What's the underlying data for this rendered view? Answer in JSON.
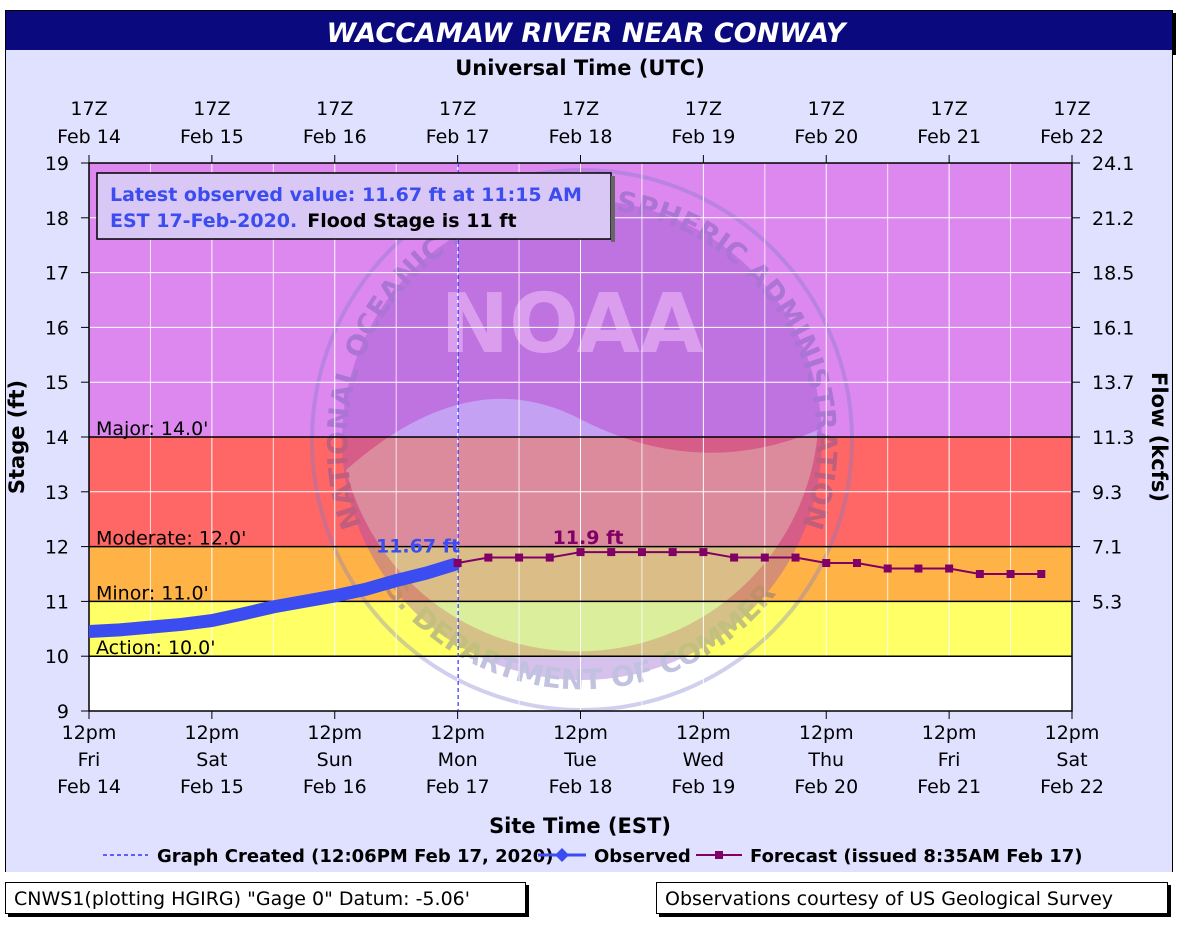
{
  "chart_data": {
    "type": "line",
    "title": "WACCAMAW RIVER NEAR CONWAY",
    "top_axis_title": "Universal Time (UTC)",
    "bottom_axis_title": "Site Time (EST)",
    "ylabel": "Stage (ft)",
    "y2label": "Flow (kcfs)",
    "ylim": [
      9,
      19
    ],
    "y_ticks": [
      9,
      10,
      11,
      12,
      13,
      14,
      15,
      16,
      17,
      18,
      19
    ],
    "y2_ticks": [
      {
        "stage": 11,
        "label": "5.3"
      },
      {
        "stage": 12,
        "label": "7.1"
      },
      {
        "stage": 13,
        "label": "9.3"
      },
      {
        "stage": 14,
        "label": "11.3"
      },
      {
        "stage": 15,
        "label": "13.7"
      },
      {
        "stage": 16,
        "label": "16.1"
      },
      {
        "stage": 17,
        "label": "18.5"
      },
      {
        "stage": 18,
        "label": "21.2"
      },
      {
        "stage": 19,
        "label": "24.1"
      }
    ],
    "xlim": [
      "2020-02-14 12:00 EST",
      "2020-02-22 12:00 EST"
    ],
    "top_ticks": [
      {
        "line1": "17Z",
        "line2": "Feb 14"
      },
      {
        "line1": "17Z",
        "line2": "Feb 15"
      },
      {
        "line1": "17Z",
        "line2": "Feb 16"
      },
      {
        "line1": "17Z",
        "line2": "Feb 17"
      },
      {
        "line1": "17Z",
        "line2": "Feb 18"
      },
      {
        "line1": "17Z",
        "line2": "Feb 19"
      },
      {
        "line1": "17Z",
        "line2": "Feb 20"
      },
      {
        "line1": "17Z",
        "line2": "Feb 21"
      },
      {
        "line1": "17Z",
        "line2": "Feb 22"
      }
    ],
    "bottom_ticks": [
      {
        "line1": "12pm",
        "line2": "Fri",
        "line3": "Feb 14"
      },
      {
        "line1": "12pm",
        "line2": "Sat",
        "line3": "Feb 15"
      },
      {
        "line1": "12pm",
        "line2": "Sun",
        "line3": "Feb 16"
      },
      {
        "line1": "12pm",
        "line2": "Mon",
        "line3": "Feb 17"
      },
      {
        "line1": "12pm",
        "line2": "Tue",
        "line3": "Feb 18"
      },
      {
        "line1": "12pm",
        "line2": "Wed",
        "line3": "Feb 19"
      },
      {
        "line1": "12pm",
        "line2": "Thu",
        "line3": "Feb 20"
      },
      {
        "line1": "12pm",
        "line2": "Fri",
        "line3": "Feb 21"
      },
      {
        "line1": "12pm",
        "line2": "Sat",
        "line3": "Feb 22"
      }
    ],
    "flood_categories": [
      {
        "name": "Action",
        "label": "Action: 10.0'",
        "from": 10,
        "to": 11,
        "color": "#ffff66"
      },
      {
        "name": "Minor",
        "label": "Minor: 11.0'",
        "from": 11,
        "to": 12,
        "color": "#ffb347"
      },
      {
        "name": "Moderate",
        "label": "Moderate: 12.0'",
        "from": 12,
        "to": 14,
        "color": "#ff6666"
      },
      {
        "name": "Major",
        "label": "Major: 14.0'",
        "from": 14,
        "to": 19,
        "color": "#dd88ee"
      }
    ],
    "below_action_color": "#ffffff",
    "series": [
      {
        "name": "Observed",
        "color": "#3b4cf0",
        "points": [
          [
            "2020-02-14 12:00",
            10.45
          ],
          [
            "2020-02-14 18:00",
            10.48
          ],
          [
            "2020-02-15 00:00",
            10.53
          ],
          [
            "2020-02-15 06:00",
            10.58
          ],
          [
            "2020-02-15 12:00",
            10.65
          ],
          [
            "2020-02-15 18:00",
            10.77
          ],
          [
            "2020-02-16 00:00",
            10.9
          ],
          [
            "2020-02-16 06:00",
            11.0
          ],
          [
            "2020-02-16 12:00",
            11.1
          ],
          [
            "2020-02-16 18:00",
            11.22
          ],
          [
            "2020-02-17 00:00",
            11.38
          ],
          [
            "2020-02-17 06:00",
            11.52
          ],
          [
            "2020-02-17 11:15",
            11.67
          ]
        ]
      },
      {
        "name": "Forecast (issued 8:35AM Feb 17)",
        "color": "#800066",
        "points": [
          [
            "2020-02-17 12:00",
            11.7
          ],
          [
            "2020-02-17 18:00",
            11.8
          ],
          [
            "2020-02-18 00:00",
            11.8
          ],
          [
            "2020-02-18 06:00",
            11.8
          ],
          [
            "2020-02-18 12:00",
            11.9
          ],
          [
            "2020-02-18 18:00",
            11.9
          ],
          [
            "2020-02-19 00:00",
            11.9
          ],
          [
            "2020-02-19 06:00",
            11.9
          ],
          [
            "2020-02-19 12:00",
            11.9
          ],
          [
            "2020-02-19 18:00",
            11.8
          ],
          [
            "2020-02-20 00:00",
            11.8
          ],
          [
            "2020-02-20 06:00",
            11.8
          ],
          [
            "2020-02-20 12:00",
            11.7
          ],
          [
            "2020-02-20 18:00",
            11.7
          ],
          [
            "2020-02-21 00:00",
            11.6
          ],
          [
            "2020-02-21 06:00",
            11.6
          ],
          [
            "2020-02-21 12:00",
            11.6
          ],
          [
            "2020-02-21 18:00",
            11.5
          ],
          [
            "2020-02-22 00:00",
            11.5
          ],
          [
            "2020-02-22 06:00",
            11.5
          ]
        ]
      }
    ],
    "annotations": {
      "observed_label": "11.67 ft",
      "forecast_label": "11.9 ft",
      "info_line1": "Latest observed value: 11.67 ft at 11:15 AM",
      "info_line2_blue": "EST 17-Feb-2020.",
      "info_line2_black": "Flood Stage is 11  ft"
    },
    "graph_created_time": "2020-02-17 12:06",
    "legend": {
      "placement": "bottom",
      "graph_created": "Graph Created (12:06PM Feb 17, 2020)",
      "observed": "Observed",
      "forecast": "Forecast (issued 8:35AM Feb 17)"
    },
    "watermark": {
      "text_top": "NATIONAL OCEANIC AND ATMOSPHERIC ADMINISTRATION",
      "text_bottom": "U.S. DEPARTMENT OF COMMERCE",
      "logo": "NOAA"
    },
    "grid": true
  },
  "footer": {
    "left": "CNWS1(plotting HGIRG) \"Gage 0\" Datum: -5.06'",
    "right": "Observations courtesy of US Geological Survey"
  },
  "colors": {
    "title_bar": "#0a0a7e",
    "background": "#e0e0ff",
    "observed": "#3b4cf0",
    "forecast": "#800066"
  }
}
